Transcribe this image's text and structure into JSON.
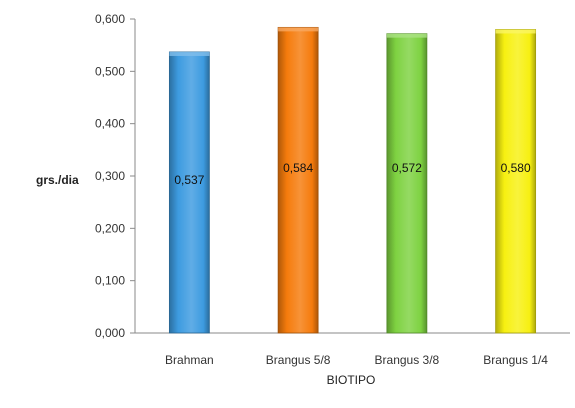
{
  "chart_data": {
    "type": "bar",
    "categories": [
      "Brahman",
      "Brangus 5/8",
      "Brangus 3/8",
      "Brangus 1/4"
    ],
    "values": [
      0.537,
      0.584,
      0.572,
      0.58
    ],
    "data_labels": [
      "0,537",
      "0,584",
      "0,572",
      "0,580"
    ],
    "colors": [
      "#3d9be0",
      "#f57b0c",
      "#7ed241",
      "#f7f011"
    ],
    "ylabel": "grs./dia",
    "xlabel": "BIOTIPO",
    "ylim": [
      0,
      0.6
    ],
    "yticks": [
      0,
      0.1,
      0.2,
      0.3,
      0.4,
      0.5,
      0.6
    ],
    "ytick_labels": [
      "0,000",
      "0,100",
      "0,200",
      "0,300",
      "0,400",
      "0,500",
      "0,600"
    ],
    "grid": false,
    "legend": "none"
  }
}
